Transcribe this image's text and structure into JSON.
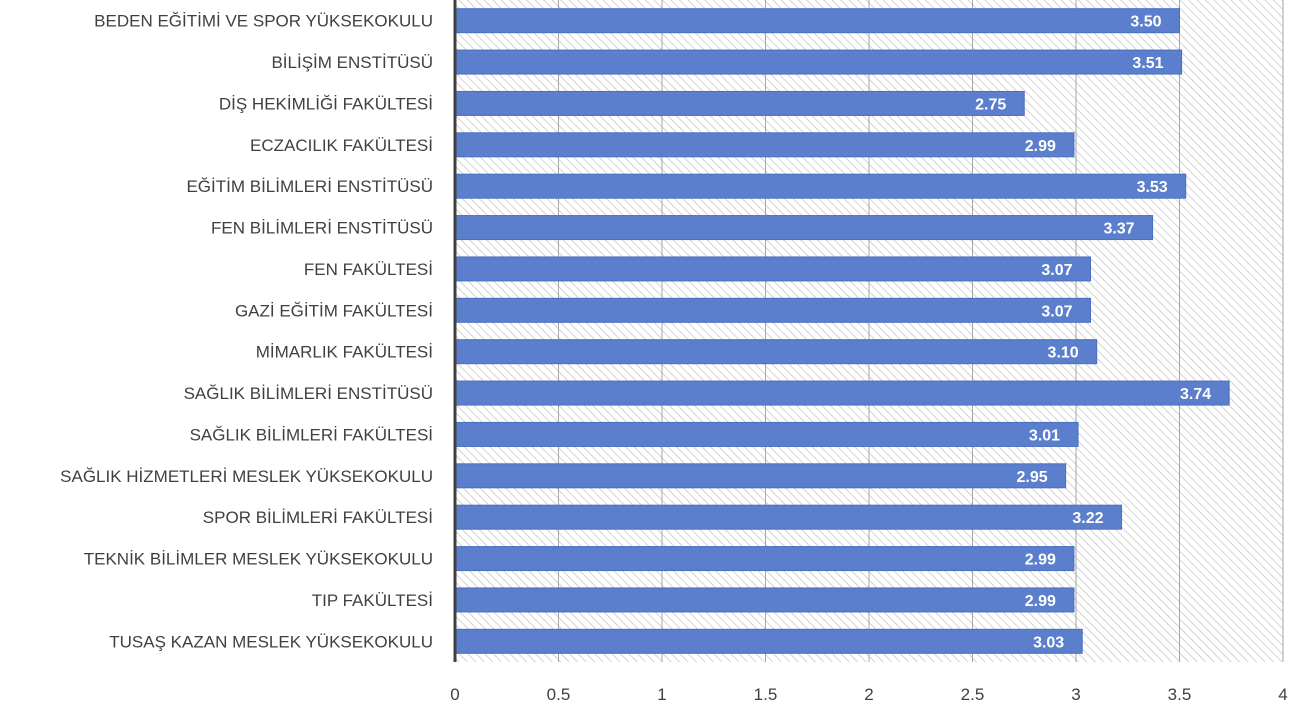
{
  "chart_data": {
    "type": "bar",
    "orientation": "horizontal",
    "categories": [
      "BEDEN EĞİTİMİ VE SPOR YÜKSEKOKULU",
      "BİLİŞİM ENSTİTÜSÜ",
      "DİŞ HEKİMLİĞİ FAKÜLTESİ",
      "ECZACILIK FAKÜLTESİ",
      "EĞİTİM BİLİMLERİ ENSTİTÜSÜ",
      "FEN BİLİMLERİ ENSTİTÜSÜ",
      "FEN FAKÜLTESİ",
      "GAZİ EĞİTİM FAKÜLTESİ",
      "MİMARLIK FAKÜLTESİ",
      "SAĞLIK BİLİMLERİ ENSTİTÜSÜ",
      "SAĞLIK BİLİMLERİ FAKÜLTESİ",
      "SAĞLIK HİZMETLERİ MESLEK YÜKSEKOKULU",
      "SPOR BİLİMLERİ FAKÜLTESİ",
      "TEKNİK BİLİMLER MESLEK YÜKSEKOKULU",
      "TIP FAKÜLTESİ",
      "TUSAŞ KAZAN MESLEK YÜKSEKOKULU"
    ],
    "values": [
      3.5,
      3.51,
      2.75,
      2.99,
      3.53,
      3.37,
      3.07,
      3.07,
      3.1,
      3.74,
      3.01,
      2.95,
      3.22,
      2.99,
      2.99,
      3.03
    ],
    "data_labels": [
      "3.50",
      "3.51",
      "2.75",
      "2.99",
      "3.53",
      "3.37",
      "3.07",
      "3.07",
      "3.10",
      "3.74",
      "3.01",
      "2.95",
      "3.22",
      "2.99",
      "2.99",
      "3.03"
    ],
    "xlim": [
      0,
      4
    ],
    "xticks": [
      "0",
      "0.5",
      "1",
      "1.5",
      "2",
      "2.5",
      "3",
      "3.5",
      "4"
    ],
    "title": "",
    "xlabel": "",
    "ylabel": "",
    "grid": "vertical",
    "legend": "none",
    "colors": {
      "bar": "#5b7fcc",
      "bar_edge": "#4a6fbf",
      "hatch": "#c8c8c8",
      "grid": "#a6a6a6",
      "axis": "#404040"
    }
  }
}
